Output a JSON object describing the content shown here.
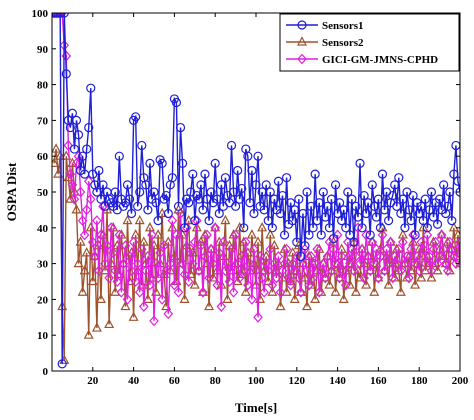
{
  "chart_data": {
    "type": "line",
    "title": "",
    "xlabel": "Time[s]",
    "ylabel": "OSPA Dist",
    "xlim": [
      0,
      200
    ],
    "ylim": [
      0,
      100
    ],
    "xticks": [
      "20",
      "40",
      "60",
      "80",
      "100",
      "120",
      "140",
      "160",
      "180",
      "200"
    ],
    "yticks": [
      "0",
      "10",
      "20",
      "30",
      "40",
      "50",
      "60",
      "70",
      "80",
      "90",
      "100"
    ],
    "grid": false,
    "legend_position": "top-right",
    "series": [
      {
        "name": "Sensors1",
        "color": "#1f1fd6",
        "marker": "circle",
        "x": [
          1,
          2,
          3,
          4,
          5,
          6,
          7,
          8,
          9,
          10,
          11,
          12,
          13,
          14,
          15,
          16,
          17,
          18,
          19,
          20,
          21,
          22,
          23,
          24,
          25,
          26,
          27,
          28,
          29,
          30,
          31,
          32,
          33,
          34,
          35,
          36,
          37,
          38,
          39,
          40,
          41,
          42,
          43,
          44,
          45,
          46,
          47,
          48,
          49,
          50,
          51,
          52,
          53,
          54,
          55,
          56,
          57,
          58,
          59,
          60,
          61,
          62,
          63,
          64,
          65,
          66,
          67,
          68,
          69,
          70,
          71,
          72,
          73,
          74,
          75,
          76,
          77,
          78,
          79,
          80,
          81,
          82,
          83,
          84,
          85,
          86,
          87,
          88,
          89,
          90,
          91,
          92,
          93,
          94,
          95,
          96,
          97,
          98,
          99,
          100,
          101,
          102,
          103,
          104,
          105,
          106,
          107,
          108,
          109,
          110,
          111,
          112,
          113,
          114,
          115,
          116,
          117,
          118,
          119,
          120,
          121,
          122,
          123,
          124,
          125,
          126,
          127,
          128,
          129,
          130,
          131,
          132,
          133,
          134,
          135,
          136,
          137,
          138,
          139,
          140,
          141,
          142,
          143,
          144,
          145,
          146,
          147,
          148,
          149,
          150,
          151,
          152,
          153,
          154,
          155,
          156,
          157,
          158,
          159,
          160,
          161,
          162,
          163,
          164,
          165,
          166,
          167,
          168,
          169,
          170,
          171,
          172,
          173,
          174,
          175,
          176,
          177,
          178,
          179,
          180,
          181,
          182,
          183,
          184,
          185,
          186,
          187,
          188,
          189,
          190,
          191,
          192,
          193,
          194,
          195,
          196,
          197,
          198,
          199,
          200
        ],
        "y": [
          100,
          100,
          100,
          100,
          2,
          100,
          83,
          70,
          68,
          72,
          62,
          70,
          66,
          56,
          60,
          55,
          62,
          68,
          79,
          55,
          52,
          50,
          56,
          48,
          52,
          46,
          50,
          48,
          47,
          46,
          50,
          45,
          60,
          48,
          46,
          47,
          52,
          48,
          44,
          70,
          71,
          46,
          50,
          63,
          54,
          52,
          45,
          58,
          48,
          50,
          47,
          42,
          59,
          58,
          48,
          49,
          44,
          52,
          54,
          76,
          75,
          46,
          68,
          58,
          40,
          48,
          47,
          50,
          55,
          42,
          49,
          48,
          52,
          45,
          55,
          48,
          42,
          50,
          47,
          58,
          48,
          44,
          52,
          46,
          54,
          49,
          47,
          63,
          50,
          46,
          56,
          48,
          51,
          40,
          62,
          60,
          47,
          56,
          44,
          52,
          60,
          46,
          50,
          45,
          52,
          42,
          50,
          40,
          48,
          45,
          53,
          44,
          49,
          38,
          54,
          41,
          47,
          42,
          45,
          36,
          48,
          32,
          44,
          35,
          50,
          38,
          46,
          40,
          55,
          42,
          47,
          38,
          50,
          43,
          46,
          40,
          48,
          37,
          52,
          44,
          47,
          42,
          45,
          40,
          50,
          38,
          48,
          36,
          46,
          43,
          58,
          40,
          49,
          44,
          47,
          38,
          52,
          46,
          43,
          48,
          40,
          55,
          45,
          50,
          42,
          47,
          49,
          52,
          46,
          54,
          44,
          48,
          40,
          50,
          45,
          42,
          49,
          38,
          47,
          44,
          46,
          42,
          48,
          40,
          45,
          50,
          43,
          47,
          41,
          48,
          45,
          52,
          44,
          46,
          50,
          42,
          55,
          63,
          53,
          50
        ]
      },
      {
        "name": "Sensors2",
        "color": "#a0522d",
        "marker": "triangle",
        "x": [
          1,
          2,
          3,
          4,
          5,
          6,
          7,
          8,
          9,
          10,
          11,
          12,
          13,
          14,
          15,
          16,
          17,
          18,
          19,
          20,
          21,
          22,
          23,
          24,
          25,
          26,
          27,
          28,
          29,
          30,
          31,
          32,
          33,
          34,
          35,
          36,
          37,
          38,
          39,
          40,
          41,
          42,
          43,
          44,
          45,
          46,
          47,
          48,
          49,
          50,
          51,
          52,
          53,
          54,
          55,
          56,
          57,
          58,
          59,
          60,
          61,
          62,
          63,
          64,
          65,
          66,
          67,
          68,
          69,
          70,
          71,
          72,
          73,
          74,
          75,
          76,
          77,
          78,
          79,
          80,
          81,
          82,
          83,
          84,
          85,
          86,
          87,
          88,
          89,
          90,
          91,
          92,
          93,
          94,
          95,
          96,
          97,
          98,
          99,
          100,
          101,
          102,
          103,
          104,
          105,
          106,
          107,
          108,
          109,
          110,
          111,
          112,
          113,
          114,
          115,
          116,
          117,
          118,
          119,
          120,
          121,
          122,
          123,
          124,
          125,
          126,
          127,
          128,
          129,
          130,
          131,
          132,
          133,
          134,
          135,
          136,
          137,
          138,
          139,
          140,
          141,
          142,
          143,
          144,
          145,
          146,
          147,
          148,
          149,
          150,
          151,
          152,
          153,
          154,
          155,
          156,
          157,
          158,
          159,
          160,
          161,
          162,
          163,
          164,
          165,
          166,
          167,
          168,
          169,
          170,
          171,
          172,
          173,
          174,
          175,
          176,
          177,
          178,
          179,
          180,
          181,
          182,
          183,
          184,
          185,
          186,
          187,
          188,
          189,
          190,
          191,
          192,
          193,
          194,
          195,
          196,
          197,
          198,
          199,
          200
        ],
        "y": [
          58,
          62,
          55,
          60,
          18,
          3,
          60,
          54,
          48,
          58,
          50,
          45,
          30,
          36,
          22,
          28,
          33,
          10,
          40,
          25,
          32,
          12,
          35,
          20,
          38,
          28,
          45,
          13,
          30,
          40,
          22,
          35,
          27,
          38,
          30,
          18,
          42,
          25,
          33,
          15,
          38,
          28,
          42,
          24,
          36,
          30,
          20,
          40,
          26,
          35,
          22,
          38,
          30,
          44,
          27,
          18,
          36,
          28,
          40,
          32,
          25,
          45,
          30,
          38,
          20,
          35,
          42,
          27,
          33,
          24,
          40,
          28,
          36,
          22,
          38,
          30,
          18,
          34,
          26,
          40,
          28,
          36,
          24,
          32,
          42,
          20,
          35,
          28,
          38,
          30,
          25,
          40,
          27,
          36,
          22,
          33,
          28,
          38,
          30,
          24,
          36,
          20,
          40,
          28,
          32,
          25,
          38,
          22,
          35,
          28,
          30,
          18,
          26,
          34,
          22,
          30,
          25,
          33,
          20,
          28,
          35,
          22,
          30,
          26,
          18,
          32,
          24,
          30,
          20,
          28,
          34,
          22,
          30,
          26,
          32,
          24,
          28,
          36,
          22,
          30,
          26,
          34,
          20,
          28,
          32,
          24,
          30,
          36,
          22,
          28,
          26,
          34,
          30,
          24,
          32,
          28,
          36,
          22,
          30,
          26,
          34,
          40,
          28,
          32,
          24,
          36,
          30,
          26,
          34,
          28,
          22,
          38,
          30,
          26,
          32,
          28,
          36,
          24,
          30,
          34,
          26,
          40,
          28,
          32,
          30,
          26,
          36,
          30,
          28,
          34,
          38,
          32,
          30,
          36,
          28,
          34,
          40,
          32,
          38,
          30
        ]
      },
      {
        "name": "GICI-GM-JMNS-CPHD",
        "color": "#e020e0",
        "marker": "diamond",
        "x": [
          1,
          2,
          3,
          4,
          5,
          6,
          7,
          8,
          9,
          10,
          11,
          12,
          13,
          14,
          15,
          16,
          17,
          18,
          19,
          20,
          21,
          22,
          23,
          24,
          25,
          26,
          27,
          28,
          29,
          30,
          31,
          32,
          33,
          34,
          35,
          36,
          37,
          38,
          39,
          40,
          41,
          42,
          43,
          44,
          45,
          46,
          47,
          48,
          49,
          50,
          51,
          52,
          53,
          54,
          55,
          56,
          57,
          58,
          59,
          60,
          61,
          62,
          63,
          64,
          65,
          66,
          67,
          68,
          69,
          70,
          71,
          72,
          73,
          74,
          75,
          76,
          77,
          78,
          79,
          80,
          81,
          82,
          83,
          84,
          85,
          86,
          87,
          88,
          89,
          90,
          91,
          92,
          93,
          94,
          95,
          96,
          97,
          98,
          99,
          100,
          101,
          102,
          103,
          104,
          105,
          106,
          107,
          108,
          109,
          110,
          111,
          112,
          113,
          114,
          115,
          116,
          117,
          118,
          119,
          120,
          121,
          122,
          123,
          124,
          125,
          126,
          127,
          128,
          129,
          130,
          131,
          132,
          133,
          134,
          135,
          136,
          137,
          138,
          139,
          140,
          141,
          142,
          143,
          144,
          145,
          146,
          147,
          148,
          149,
          150,
          151,
          152,
          153,
          154,
          155,
          156,
          157,
          158,
          159,
          160,
          161,
          162,
          163,
          164,
          165,
          166,
          167,
          168,
          169,
          170,
          171,
          172,
          173,
          174,
          175,
          176,
          177,
          178,
          179,
          180,
          181,
          182,
          183,
          184,
          185,
          186,
          187,
          188,
          189,
          190,
          191,
          192,
          193,
          194,
          195,
          196,
          197,
          198,
          199,
          200
        ],
        "y": [
          100,
          100,
          100,
          100,
          100,
          91,
          88,
          63,
          55,
          52,
          48,
          58,
          60,
          50,
          42,
          38,
          45,
          53,
          48,
          36,
          32,
          42,
          28,
          38,
          46,
          30,
          35,
          26,
          40,
          33,
          28,
          25,
          38,
          22,
          30,
          35,
          20,
          32,
          28,
          36,
          25,
          30,
          22,
          34,
          18,
          28,
          32,
          24,
          38,
          14,
          30,
          26,
          33,
          20,
          35,
          28,
          16,
          30,
          42,
          24,
          38,
          22,
          44,
          30,
          27,
          40,
          25,
          34,
          30,
          36,
          42,
          28,
          35,
          22,
          32,
          38,
          26,
          34,
          30,
          40,
          24,
          33,
          18,
          36,
          28,
          30,
          25,
          34,
          22,
          38,
          30,
          26,
          32,
          28,
          36,
          24,
          30,
          20,
          34,
          28,
          15,
          32,
          26,
          22,
          30,
          28,
          34,
          24,
          30,
          26,
          32,
          22,
          28,
          30,
          34,
          26,
          24,
          30,
          28,
          32,
          26,
          22,
          30,
          34,
          28,
          24,
          32,
          26,
          30,
          34,
          22,
          28,
          30,
          26,
          32,
          36,
          28,
          34,
          30,
          38,
          26,
          32,
          28,
          24,
          36,
          30,
          34,
          28,
          32,
          40,
          30,
          34,
          26,
          38,
          32,
          28,
          36,
          30,
          34,
          26,
          32,
          38,
          28,
          34,
          30,
          36,
          26,
          32,
          30,
          34,
          28,
          36,
          30,
          32,
          26,
          34,
          38,
          30,
          32,
          28,
          36,
          34,
          30,
          38,
          32,
          28,
          34,
          36,
          30,
          32,
          38,
          34,
          30,
          28,
          36,
          34,
          32,
          30,
          34,
          36
        ]
      }
    ]
  }
}
